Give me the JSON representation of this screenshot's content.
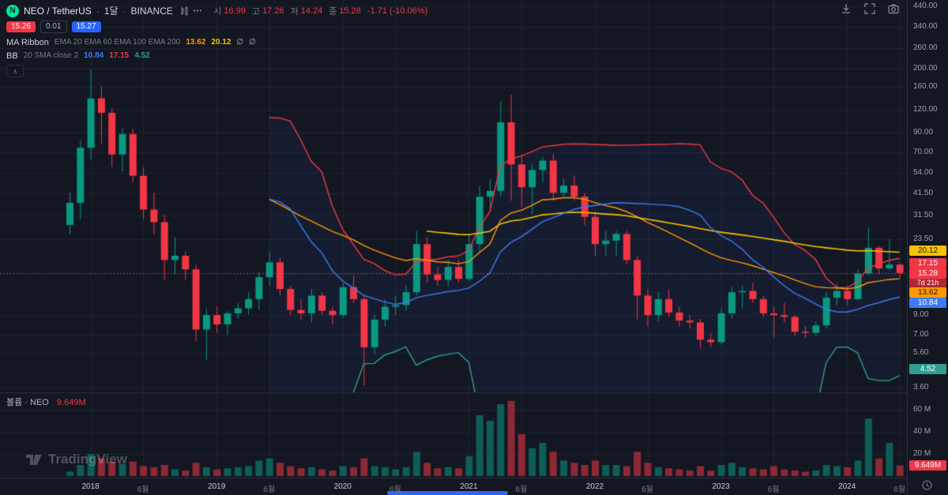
{
  "app": {
    "watermark": "TradingView"
  },
  "header": {
    "symbol": {
      "logo_text": "N",
      "title": "NEO / TetherUS",
      "separator": "·",
      "interval": "1달",
      "exchange": "BINANCE"
    },
    "actions": {
      "more_label": "•••"
    },
    "legend_collapse": "∧",
    "ohlc": {
      "open_label": "시",
      "open_value": "16.99",
      "high_label": "고",
      "high_value": "17.26",
      "low_label": "저",
      "low_value": "14.24",
      "close_label": "종",
      "close_value": "15.28",
      "change_value": "-1.71 (-10.06%)"
    },
    "quote": {
      "bid": "15.26",
      "spread": "0.01",
      "ask": "15.27"
    }
  },
  "indicators": [
    {
      "name": "MA Ribbon",
      "params": "EMA 20 EMA 60 EMA 100 EMA 200",
      "values": [
        {
          "text": "13.62",
          "color": "#ff9800"
        },
        {
          "text": "20.12",
          "color": "#f8c200"
        },
        {
          "text": "∅",
          "color": "#787b86"
        },
        {
          "text": "∅",
          "color": "#787b86"
        }
      ]
    },
    {
      "name": "BB",
      "params": "20 SMA close 2",
      "values": [
        {
          "text": "10.84",
          "color": "#3d7bf5"
        },
        {
          "text": "17.15",
          "color": "#f23645"
        },
        {
          "text": "4.52",
          "color": "#2f9e8f"
        }
      ]
    }
  ],
  "volume_pane": {
    "label": "볼륨 · NEO",
    "value": "9.649M"
  },
  "price_axis": {
    "ticks": [
      {
        "text": "440.00",
        "value": 440
      },
      {
        "text": "340.00",
        "value": 340
      },
      {
        "text": "260.00",
        "value": 260
      },
      {
        "text": "200.00",
        "value": 200
      },
      {
        "text": "160.00",
        "value": 160
      },
      {
        "text": "120.00",
        "value": 120
      },
      {
        "text": "90.00",
        "value": 90
      },
      {
        "text": "70.00",
        "value": 70
      },
      {
        "text": "54.00",
        "value": 54
      },
      {
        "text": "41.50",
        "value": 41.5
      },
      {
        "text": "31.50",
        "value": 31.5
      },
      {
        "text": "23.50",
        "value": 23.5
      },
      {
        "text": "9.00",
        "value": 9
      },
      {
        "text": "7.00",
        "value": 7
      },
      {
        "text": "5.60",
        "value": 5.6
      },
      {
        "text": "3.60",
        "value": 3.6
      }
    ],
    "badges": [
      {
        "text": "20.12",
        "price": 20.12,
        "bg": "#f8c200",
        "fg": "#131722"
      },
      {
        "text": "17.15",
        "price": 17.15,
        "bg": "#f23645",
        "fg": "#ffffff"
      },
      {
        "text": "15.28",
        "price": 15.28,
        "bg": "#f23645",
        "fg": "#ffffff",
        "kind": "last"
      },
      {
        "text": "7d 21h",
        "price": null,
        "bg": "#b22833",
        "fg": "#ffffff",
        "kind": "countdown"
      },
      {
        "text": "13.62",
        "price": 13.62,
        "bg": "#ff9800",
        "fg": "#131722"
      },
      {
        "text": "10.84",
        "price": 10.84,
        "bg": "#3d7bf5",
        "fg": "#ffffff"
      },
      {
        "text": "4.52",
        "price": 4.52,
        "bg": "#2f9e8f",
        "fg": "#ffffff"
      }
    ]
  },
  "volume_axis": {
    "ticks": [
      {
        "text": "60 M",
        "value": 60
      },
      {
        "text": "40 M",
        "value": 40
      },
      {
        "text": "20 M",
        "value": 20
      }
    ],
    "badge": {
      "text": "9.649M",
      "value": 9.649,
      "bg": "#f23645",
      "fg": "#ffffff"
    }
  },
  "time_axis": {
    "labels": [
      {
        "text": "2018",
        "index": 2,
        "major": true
      },
      {
        "text": "6월",
        "index": 7,
        "major": false
      },
      {
        "text": "2019",
        "index": 14,
        "major": true
      },
      {
        "text": "6월",
        "index": 19,
        "major": false
      },
      {
        "text": "2020",
        "index": 26,
        "major": true
      },
      {
        "text": "6월",
        "index": 31,
        "major": false
      },
      {
        "text": "2021",
        "index": 38,
        "major": true
      },
      {
        "text": "6월",
        "index": 43,
        "major": false
      },
      {
        "text": "2022",
        "index": 50,
        "major": true
      },
      {
        "text": "6월",
        "index": 55,
        "major": false
      },
      {
        "text": "2023",
        "index": 62,
        "major": true
      },
      {
        "text": "6월",
        "index": 67,
        "major": false
      },
      {
        "text": "2024",
        "index": 74,
        "major": true
      },
      {
        "text": "6월",
        "index": 79,
        "major": false
      }
    ]
  },
  "chart_data": {
    "type": "candlestick",
    "symbol": "NEO/USDT",
    "exchange": "BINANCE",
    "interval": "1M",
    "start_month": "2017-11",
    "log_scale": true,
    "price_range_visible": [
      3.4,
      476
    ],
    "volume_range": [
      0,
      75
    ],
    "last_price": 15.28,
    "colors": {
      "up": "#089981",
      "down": "#f23645",
      "vol_up": "rgba(8,153,129,0.55)",
      "vol_down": "rgba(242,54,69,0.55)",
      "ema20": "#ff9800",
      "ema60": "#f8c200",
      "bb_basis": "#3d7bf5",
      "bb_upper": "#f23645",
      "bb_lower": "#2f9e8f",
      "bb_fill": "rgba(62,101,227,0.07)"
    },
    "candles": [
      [
        28,
        42,
        25,
        37,
        4
      ],
      [
        37,
        81,
        30,
        74,
        10
      ],
      [
        74,
        198,
        64,
        138,
        20
      ],
      [
        138,
        160,
        78,
        115,
        16
      ],
      [
        115,
        122,
        58,
        68,
        13
      ],
      [
        68,
        95,
        55,
        88,
        11
      ],
      [
        88,
        94,
        48,
        52,
        13
      ],
      [
        52,
        58,
        30,
        34,
        9
      ],
      [
        34,
        42,
        25,
        29,
        8
      ],
      [
        29,
        32,
        14,
        18,
        10
      ],
      [
        18,
        24,
        15,
        19,
        6
      ],
      [
        19,
        20,
        14,
        16,
        5
      ],
      [
        16,
        17,
        6.5,
        7.5,
        12
      ],
      [
        7.5,
        9.8,
        5.1,
        9,
        8
      ],
      [
        9,
        10,
        7.2,
        8,
        6
      ],
      [
        8,
        9.5,
        7,
        9.2,
        7
      ],
      [
        9.2,
        10.5,
        8.6,
        9.8,
        8
      ],
      [
        9.8,
        12,
        9,
        11,
        9
      ],
      [
        11,
        15.5,
        9.6,
        14.5,
        14
      ],
      [
        14.5,
        20,
        13,
        17.5,
        16
      ],
      [
        17.5,
        18.5,
        11.5,
        12.5,
        12
      ],
      [
        12.5,
        13,
        9,
        9.6,
        9
      ],
      [
        9.6,
        11,
        8.5,
        9.2,
        7
      ],
      [
        9.2,
        12.5,
        8.2,
        11.5,
        8
      ],
      [
        11.5,
        12,
        9,
        9.5,
        6
      ],
      [
        9.5,
        10,
        8,
        9,
        5
      ],
      [
        9,
        13.5,
        8.7,
        12.8,
        9
      ],
      [
        12.8,
        14.8,
        10.5,
        11,
        8
      ],
      [
        11,
        11.5,
        3.7,
        6,
        16
      ],
      [
        6,
        9,
        5.5,
        8.5,
        9
      ],
      [
        8.5,
        11,
        7.8,
        10,
        8
      ],
      [
        10,
        11.5,
        9,
        10.2,
        6
      ],
      [
        10.2,
        13,
        9.5,
        12,
        8
      ],
      [
        12,
        26,
        11.5,
        22,
        22
      ],
      [
        22,
        24,
        13.5,
        15,
        12
      ],
      [
        15,
        16.5,
        13,
        14,
        7
      ],
      [
        14,
        18,
        13,
        16.5,
        8
      ],
      [
        16.5,
        18,
        13.5,
        14.2,
        7
      ],
      [
        14.2,
        25,
        13.8,
        22,
        18
      ],
      [
        22,
        46,
        20,
        40,
        55
      ],
      [
        40,
        50,
        33,
        43,
        50
      ],
      [
        43,
        132,
        40,
        102,
        65
      ],
      [
        102,
        145,
        38,
        60,
        68
      ],
      [
        60,
        68,
        35,
        45,
        38
      ],
      [
        45,
        60,
        32,
        56,
        25
      ],
      [
        56,
        66,
        48,
        63,
        30
      ],
      [
        63,
        68,
        38,
        42,
        22
      ],
      [
        42,
        50,
        40,
        46,
        14
      ],
      [
        46,
        52,
        38,
        40,
        12
      ],
      [
        40,
        42,
        28,
        31,
        10
      ],
      [
        31,
        33,
        19,
        22,
        14
      ],
      [
        22,
        26,
        19,
        23,
        10
      ],
      [
        23,
        26,
        19,
        25,
        10
      ],
      [
        25,
        26,
        17,
        18,
        9
      ],
      [
        18,
        19,
        8.5,
        11.5,
        22
      ],
      [
        11.5,
        12.5,
        7.8,
        9,
        12
      ],
      [
        9,
        12,
        8.3,
        11,
        8
      ],
      [
        11,
        12.5,
        8.8,
        9.3,
        7
      ],
      [
        9.3,
        10,
        7.8,
        8.4,
        6
      ],
      [
        8.4,
        9,
        7.6,
        8.2,
        5
      ],
      [
        8.2,
        8.6,
        5.9,
        6.6,
        9
      ],
      [
        6.6,
        7.2,
        6,
        6.4,
        5
      ],
      [
        6.4,
        9.8,
        6.2,
        9.2,
        10
      ],
      [
        9.2,
        12.8,
        8.6,
        12,
        12
      ],
      [
        12,
        13,
        9.8,
        12.2,
        8
      ],
      [
        12.2,
        13.5,
        10.5,
        11,
        7
      ],
      [
        11,
        11.5,
        8.8,
        9.2,
        6
      ],
      [
        9.2,
        10,
        6.8,
        9,
        9
      ],
      [
        9,
        10.5,
        8.2,
        8.8,
        6
      ],
      [
        8.8,
        9,
        6.9,
        7.3,
        5
      ],
      [
        7.3,
        7.8,
        6.8,
        7.2,
        4
      ],
      [
        7.2,
        8.3,
        6.9,
        7.9,
        5
      ],
      [
        7.9,
        12,
        7.6,
        11.2,
        10
      ],
      [
        11.2,
        13.5,
        10.2,
        12.2,
        9
      ],
      [
        12.2,
        13,
        10.2,
        11,
        8
      ],
      [
        11,
        16,
        10.8,
        15.2,
        14
      ],
      [
        15.2,
        27,
        14.8,
        21,
        52
      ],
      [
        21,
        21.5,
        15,
        16.2,
        16
      ],
      [
        16.2,
        23.4,
        15.8,
        17,
        30
      ],
      [
        16.99,
        17.26,
        14.24,
        15.28,
        9.649
      ]
    ]
  }
}
